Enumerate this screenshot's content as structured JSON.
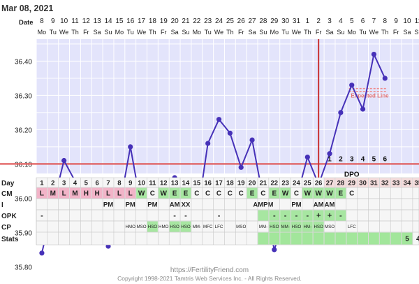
{
  "chart_data": {
    "type": "line",
    "title": "Mar 08, 2021",
    "row_labels": {
      "date": "Date",
      "day": "Day",
      "cm": "CM",
      "i": "I",
      "opk": "OPK",
      "cp": "CP",
      "stats": "Stats"
    },
    "dates": [
      "8",
      "9",
      "10",
      "11",
      "12",
      "13",
      "14",
      "15",
      "16",
      "17",
      "18",
      "19",
      "20",
      "21",
      "22",
      "23",
      "24",
      "25",
      "26",
      "27",
      "28",
      "29",
      "30",
      "31",
      "1",
      "2",
      "3",
      "4",
      "5",
      "6",
      "7",
      "8",
      "9",
      "10",
      "11"
    ],
    "weekdays": [
      "Mo",
      "Tu",
      "We",
      "Th",
      "Fr",
      "Sa",
      "Su",
      "Mo",
      "Tu",
      "We",
      "Th",
      "Fr",
      "Sa",
      "Su",
      "Mo",
      "Tu",
      "We",
      "Th",
      "Fr",
      "Sa",
      "Su",
      "Mo",
      "Tu",
      "We",
      "Th",
      "Fr",
      "Sa",
      "Su",
      "Mo",
      "Tu",
      "We",
      "Th",
      "Fr",
      "Sa",
      "Su"
    ],
    "y_ticks": [
      "36.40",
      "36.30",
      "36.20",
      "36.10",
      "36.00",
      "35.90",
      "35.80"
    ],
    "ylim": [
      35.75,
      36.52
    ],
    "temperatures": [
      35.84,
      35.98,
      36.11,
      36.05,
      null,
      36.05,
      35.86,
      35.97,
      36.15,
      35.97,
      36.0,
      null,
      36.06,
      35.94,
      35.94,
      36.16,
      36.23,
      36.19,
      36.09,
      36.17,
      36.0,
      35.85,
      35.95,
      36.0,
      36.12,
      36.04,
      36.13,
      36.25,
      36.33,
      36.26,
      36.42,
      36.35,
      null,
      null,
      null
    ],
    "dashed_gaps": [
      [
        4,
        6
      ],
      [
        11,
        13
      ]
    ],
    "coverline": 36.1,
    "ovulation_day": 26,
    "expected_line": {
      "label": "Expected Line",
      "value": 36.32,
      "from_day": 29,
      "to_day": 32
    },
    "dpo_numbers": [
      "1",
      "2",
      "3",
      "4",
      "5",
      "6"
    ],
    "dpo_label": "DPO",
    "cycle_days": [
      "1",
      "2",
      "3",
      "4",
      "5",
      "6",
      "7",
      "8",
      "9",
      "10",
      "11",
      "12",
      "13",
      "14",
      "15",
      "16",
      "17",
      "18",
      "19",
      "20",
      "21",
      "22",
      "23",
      "24",
      "25",
      "26",
      "27",
      "28",
      "29",
      "30",
      "31",
      "32",
      "33",
      "34",
      "35"
    ],
    "cm": [
      "L",
      "M",
      "L",
      "M",
      "H",
      "H",
      "L",
      "L",
      "L",
      "W",
      "C",
      "W",
      "E",
      "E",
      "C",
      "C",
      "C",
      "C",
      "C",
      "E",
      "C",
      "E",
      "W",
      "C",
      "W",
      "W",
      "W",
      "E",
      "C",
      "",
      "",
      "",
      "",
      "",
      ""
    ],
    "i": [
      "",
      "",
      "",
      "",
      "",
      "",
      "PM",
      "",
      "PM",
      "",
      "PM",
      "",
      "AM",
      "XX",
      "",
      "",
      "",
      "",
      "",
      "",
      "AMPM",
      "",
      "",
      "PM",
      "",
      "AM",
      "AM",
      "",
      "",
      "",
      "",
      "",
      "",
      "",
      ""
    ],
    "opk": [
      "-",
      "",
      "",
      "",
      "",
      "",
      "",
      "",
      "",
      "",
      "",
      "",
      "-",
      "-",
      "",
      "",
      "-",
      "",
      "",
      "",
      "",
      "-",
      "-",
      "-",
      "-",
      "+",
      "+",
      "-",
      "",
      "",
      "",
      "",
      "",
      "",
      ""
    ],
    "cp": [
      "",
      "",
      "",
      "",
      "",
      "",
      "",
      "",
      "HMO",
      "MSO",
      "HSO",
      "HMO",
      "HSO",
      "HSO",
      "MM-",
      "MFC",
      "LFC",
      "",
      "MSO",
      "",
      "MM-",
      "HSO",
      "MM-",
      "HSO",
      "HM-",
      "HSO",
      "MSO",
      "",
      "LFC",
      "",
      "",
      "",
      "",
      "",
      ""
    ],
    "stats": [
      "",
      "",
      "",
      "",
      "",
      "",
      "",
      "",
      "",
      "",
      "",
      "",
      "",
      "",
      "",
      "",
      "",
      "",
      "",
      "",
      "",
      "",
      "",
      "",
      "",
      "",
      "",
      "",
      "",
      "",
      "",
      "",
      "",
      "5",
      "4"
    ]
  },
  "colors": {
    "plot_bg": "#e3e4fb",
    "grid": "#ffffff",
    "temp_line": "#4631b8",
    "coverline": "#e05d5d",
    "ovulation_line": "#c93030",
    "cm_pink": "#f2b4c8",
    "cm_green": "#a7e6a1",
    "cp_green": "#a7e6a1",
    "stats_green": "#a2e69b",
    "row_bg": "#f6f6f6"
  },
  "footer": {
    "line1": "https://FertilityFriend.com",
    "line2": "Copyright 1998-2021 Tamtris Web Services Inc. - All Rights Reserved."
  }
}
